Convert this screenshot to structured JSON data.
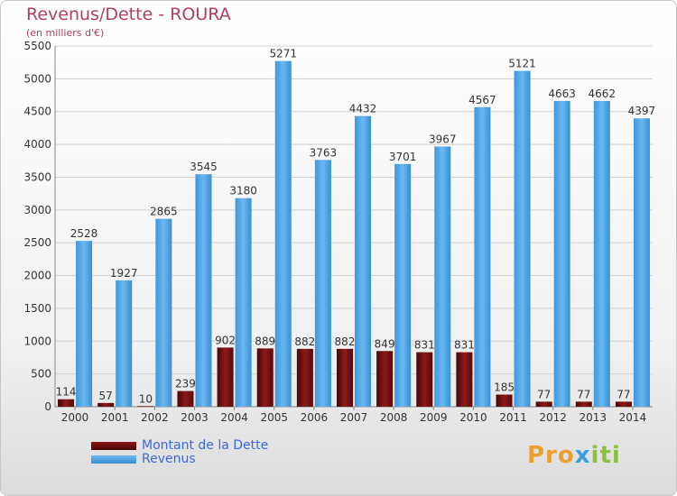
{
  "header": {
    "title": "Revenus/Dette - ROURA",
    "subtitle": "(en milliers d'€)"
  },
  "chart_data": {
    "type": "bar",
    "categories": [
      "2000",
      "2001",
      "2002",
      "2003",
      "2004",
      "2005",
      "2006",
      "2007",
      "2008",
      "2009",
      "2010",
      "2011",
      "2012",
      "2013",
      "2014"
    ],
    "series": [
      {
        "name": "Montant de la Dette",
        "color": "#6e0c0c",
        "values": [
          114,
          57,
          10,
          239,
          902,
          889,
          882,
          882,
          849,
          831,
          831,
          185,
          77,
          77,
          77
        ],
        "labels": [
          "114",
          "57",
          "10",
          "239",
          "902",
          "889",
          "882",
          "882",
          "849",
          "831",
          "831",
          "185",
          "77",
          "77",
          "77"
        ]
      },
      {
        "name": "Revenus",
        "color": "#4fa6e6",
        "values": [
          2528,
          1927,
          2865,
          3545,
          3180,
          5271,
          3763,
          4432,
          3701,
          3967,
          4567,
          5121,
          4663,
          4662,
          4397
        ],
        "labels": [
          "2528",
          "1927",
          "2865",
          "3545",
          "3180",
          "5271",
          "3763",
          "4432",
          "3701",
          "3967",
          "4567",
          "5121",
          "4663",
          "4662",
          "4397"
        ]
      }
    ],
    "ylim": [
      0,
      5500
    ],
    "yticks": [
      "0",
      "500",
      "1000",
      "1500",
      "2000",
      "2500",
      "3000",
      "3500",
      "4000",
      "4500",
      "5000",
      "5500"
    ],
    "grid": true,
    "legend_position": "bottom-left"
  },
  "legend": {
    "debt_label": "Montant de la Dette",
    "revenue_label": "Revenus",
    "debt_color": "#6e0c0c",
    "revenue_color": "#4fa6e6"
  },
  "logo": {
    "part1": "Pro",
    "part2": "x",
    "part3": "iti"
  }
}
